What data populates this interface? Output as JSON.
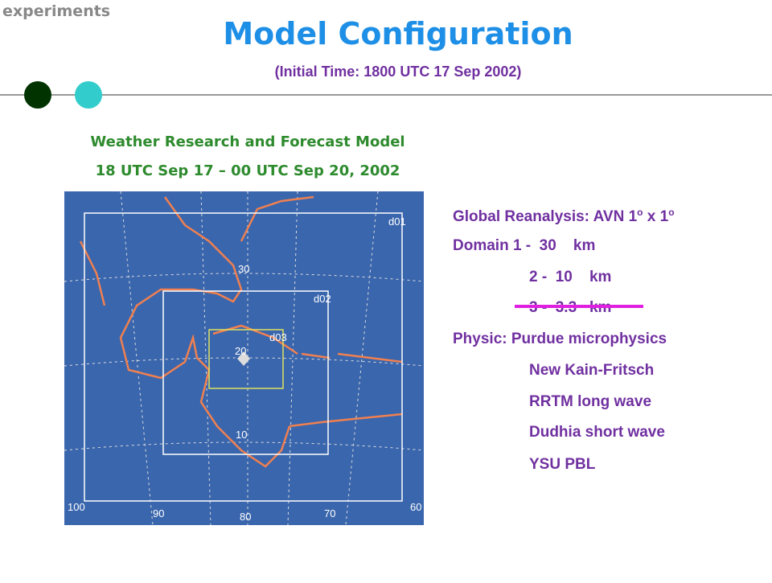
{
  "header": {
    "section": "experiments",
    "title": "Model Configuration",
    "subtitle": "(Initial Time: 1800 UTC 17 Sep 2002)"
  },
  "model": {
    "name": "Weather Research and Forecast Model",
    "period": "18 UTC Sep 17 –  00 UTC Sep 20, 2002"
  },
  "map": {
    "labels": [
      "d01",
      "d02",
      "d03",
      "30",
      "20",
      "10",
      "100",
      "90",
      "80",
      "70",
      "60"
    ]
  },
  "config": {
    "reanalysis": {
      "text": "Global Reanalysis: AVN 1",
      "sup1": "o",
      "mid": " x 1",
      "sup2": "o"
    },
    "domains": [
      "Domain 1 -  30    km",
      "2 -  10    km",
      "3 -  3.3   km"
    ],
    "physics": [
      "Physic: Purdue microphysics",
      "New Kain-Fritsch",
      "RRTM long wave",
      "Dudhia short wave",
      "YSU PBL"
    ]
  }
}
